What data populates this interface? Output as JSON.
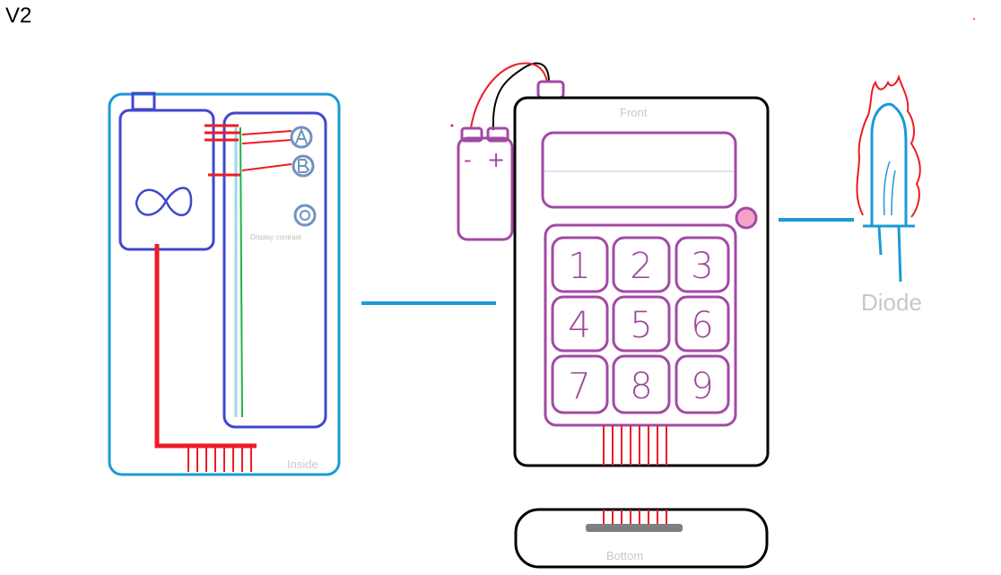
{
  "version_label": "V2",
  "inside": {
    "label": "Inside",
    "display_contrast_label": "Display contrast"
  },
  "front": {
    "label": "Front",
    "keypad": [
      "1",
      "2",
      "3",
      "4",
      "5",
      "6",
      "7",
      "8",
      "9"
    ]
  },
  "bottom": {
    "label": "Bottom"
  },
  "diode": {
    "label": "Diode"
  },
  "battery": {
    "minus": "-",
    "plus": "+"
  },
  "colors": {
    "inside_outline": "#1b9ad6",
    "panel_outline": "#3f48cc",
    "wire_red": "#ed1c24",
    "wire_green": "#22b14c",
    "wire_lightblue": "#99d9ea",
    "front_outline": "#000000",
    "purple": "#a349a4",
    "pink_button": "#f5a3c7",
    "connector_blue": "#1b9ad6",
    "grey_bar": "#7f7f7f",
    "button_grey": "#7092be"
  }
}
